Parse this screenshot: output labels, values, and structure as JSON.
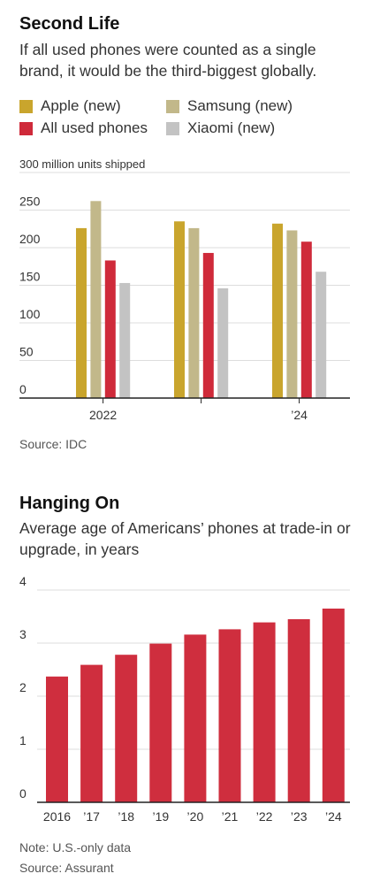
{
  "chart1": {
    "title": "Second Life",
    "subtitle": "If all used phones were counted as a single brand, it would be the third-biggest globally.",
    "unit_note": "300 million units shipped",
    "source": "Source: IDC"
  },
  "chart2": {
    "title": "Hanging On",
    "subtitle": "Average age of Americans’ phones at trade-in or upgrade, in years",
    "note": "Note: U.S.-only data",
    "source": "Source: Assurant"
  },
  "colors": {
    "apple": "#c9a52d",
    "samsung": "#c2b88a",
    "used": "#cf2a3a",
    "xiaomi": "#c3c3c3",
    "bar2": "#cf2e3e",
    "grid": "#dddddd",
    "axis": "#222222"
  },
  "chart_data": [
    {
      "type": "bar",
      "title": "Second Life",
      "subtitle": "If all used phones were counted as a single brand, it would be the third-biggest globally.",
      "ylabel": "300 million units shipped",
      "ylim": [
        0,
        300
      ],
      "yticks": [
        0,
        50,
        100,
        150,
        200,
        250,
        300
      ],
      "ytick_labels": [
        "0",
        "50",
        "100",
        "150",
        "200",
        "250",
        ""
      ],
      "categories": [
        "2022",
        "",
        "’24"
      ],
      "series": [
        {
          "name": "Apple (new)",
          "color": "#c9a52d",
          "values": [
            226,
            235,
            232
          ]
        },
        {
          "name": "Samsung (new)",
          "color": "#c2b88a",
          "values": [
            262,
            226,
            223
          ]
        },
        {
          "name": "All used phones",
          "color": "#cf2a3a",
          "values": [
            183,
            193,
            208
          ]
        },
        {
          "name": "Xiaomi (new)",
          "color": "#c3c3c3",
          "values": [
            153,
            146,
            168
          ]
        }
      ],
      "legend_position": "top",
      "grid": true
    },
    {
      "type": "bar",
      "title": "Hanging On",
      "subtitle": "Average age of Americans’ phones at trade-in or upgrade, in years",
      "ylim": [
        0,
        4
      ],
      "yticks": [
        0,
        1,
        2,
        3,
        4
      ],
      "categories": [
        "2016",
        "’17",
        "’18",
        "’19",
        "’20",
        "’21",
        "’22",
        "’23",
        "’24"
      ],
      "values": [
        2.37,
        2.59,
        2.78,
        2.99,
        3.16,
        3.26,
        3.39,
        3.45,
        3.65
      ],
      "grid": true
    }
  ]
}
